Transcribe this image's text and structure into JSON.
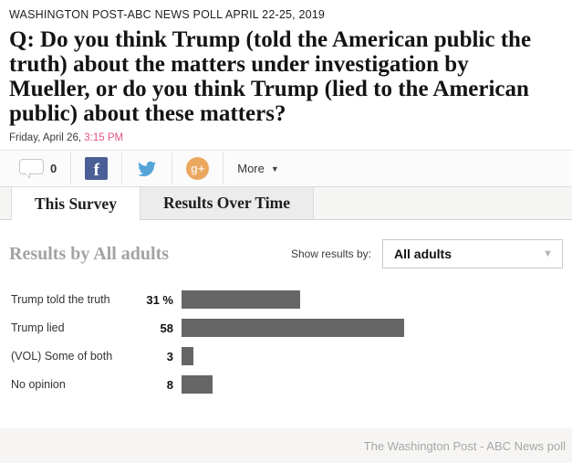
{
  "header": {
    "kicker": "WASHINGTON POST-ABC NEWS POLL APRIL 22-25, 2019",
    "question": "Q: Do you think Trump (told the American public the truth) about the matters under investigation by Mueller, or do you think Trump (lied to the American public) about these matters?",
    "date": "Friday, April 26, ",
    "time": "3:15 PM"
  },
  "share": {
    "comment_count": "0",
    "facebook_icon": "facebook",
    "twitter_icon": "twitter",
    "googleplus_icon": "google-plus",
    "more_label": "More"
  },
  "tabs": [
    {
      "label": "This Survey",
      "active": true
    },
    {
      "label": "Results Over Time",
      "active": false
    }
  ],
  "results": {
    "heading": "Results by All adults",
    "filter_label": "Show results by:",
    "filter_value": "All adults"
  },
  "chart_data": {
    "type": "bar",
    "orientation": "horizontal",
    "categories": [
      "Trump told the truth",
      "Trump lied",
      "(VOL) Some of both",
      "No opinion"
    ],
    "values": [
      31,
      58,
      3,
      8
    ],
    "value_labels": [
      "31 %",
      "58",
      "3",
      "8"
    ],
    "bar_color": "#666666",
    "xlim": [
      0,
      100
    ],
    "title": "Results by All adults",
    "grid": false,
    "legend": false
  },
  "footer": {
    "attribution": "The Washington Post - ABC News poll"
  }
}
